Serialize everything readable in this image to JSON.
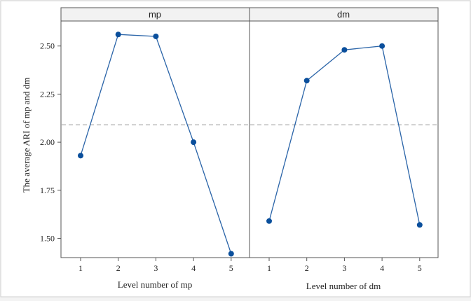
{
  "chart_data": {
    "type": "line",
    "ylabel": "The average ARI of mp and dm",
    "ylim": [
      1.4,
      2.63
    ],
    "yticks": [
      "1.50",
      "1.75",
      "2.00",
      "2.25",
      "2.50"
    ],
    "reference_line": 2.09,
    "grid": false,
    "line_color": "#2a64a8",
    "marker_color": "#0a4f9c",
    "panels": [
      {
        "title": "mp",
        "xlabel": "Level number of mp",
        "categories": [
          "1",
          "2",
          "3",
          "4",
          "5"
        ],
        "values": [
          1.93,
          2.56,
          2.55,
          2.0,
          1.42
        ]
      },
      {
        "title": "dm",
        "xlabel": "Level number of dm",
        "categories": [
          "1",
          "2",
          "3",
          "4",
          "5"
        ],
        "values": [
          1.59,
          2.32,
          2.48,
          2.5,
          1.57
        ]
      }
    ]
  }
}
